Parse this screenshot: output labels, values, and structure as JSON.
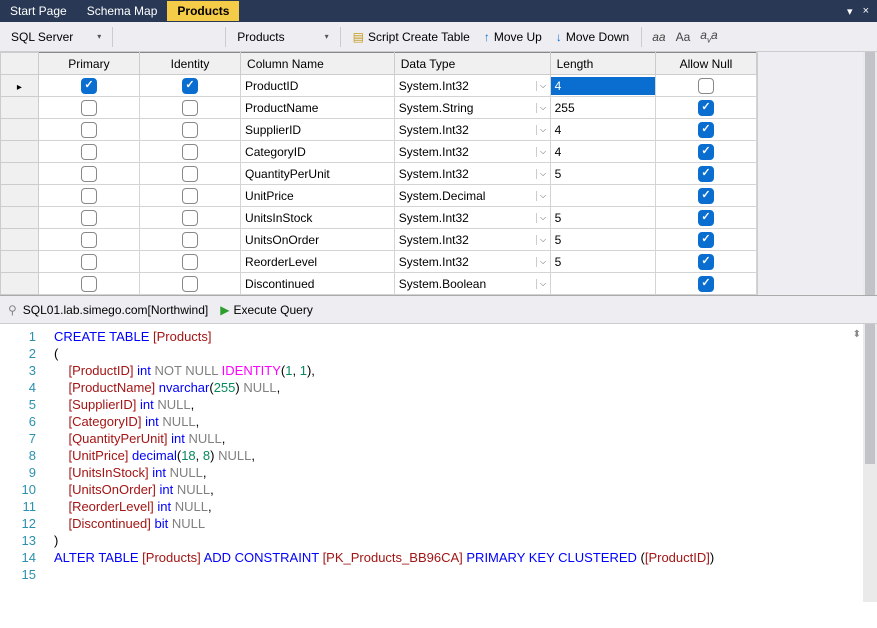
{
  "tabs": {
    "items": [
      "Start Page",
      "Schema Map",
      "Products"
    ],
    "activeIndex": 2
  },
  "toolbar": {
    "provider": "SQL Server",
    "table": "Products",
    "scriptCreate": "Script Create Table",
    "moveUp": "Move Up",
    "moveDown": "Move Down"
  },
  "grid": {
    "headers": {
      "primary": "Primary",
      "identity": "Identity",
      "columnName": "Column Name",
      "dataType": "Data Type",
      "length": "Length",
      "allowNull": "Allow Null"
    },
    "rows": [
      {
        "primary": true,
        "identity": true,
        "name": "ProductID",
        "type": "System.Int32",
        "length": "4",
        "lenSelected": true,
        "allowNull": false,
        "current": true
      },
      {
        "primary": false,
        "identity": false,
        "name": "ProductName",
        "type": "System.String",
        "length": "255",
        "lenSelected": false,
        "allowNull": true,
        "current": false
      },
      {
        "primary": false,
        "identity": false,
        "name": "SupplierID",
        "type": "System.Int32",
        "length": "4",
        "lenSelected": false,
        "allowNull": true,
        "current": false
      },
      {
        "primary": false,
        "identity": false,
        "name": "CategoryID",
        "type": "System.Int32",
        "length": "4",
        "lenSelected": false,
        "allowNull": true,
        "current": false
      },
      {
        "primary": false,
        "identity": false,
        "name": "QuantityPerUnit",
        "type": "System.Int32",
        "length": "5",
        "lenSelected": false,
        "allowNull": true,
        "current": false
      },
      {
        "primary": false,
        "identity": false,
        "name": "UnitPrice",
        "type": "System.Decimal",
        "length": "",
        "lenSelected": false,
        "allowNull": true,
        "current": false
      },
      {
        "primary": false,
        "identity": false,
        "name": "UnitsInStock",
        "type": "System.Int32",
        "length": "5",
        "lenSelected": false,
        "allowNull": true,
        "current": false
      },
      {
        "primary": false,
        "identity": false,
        "name": "UnitsOnOrder",
        "type": "System.Int32",
        "length": "5",
        "lenSelected": false,
        "allowNull": true,
        "current": false
      },
      {
        "primary": false,
        "identity": false,
        "name": "ReorderLevel",
        "type": "System.Int32",
        "length": "5",
        "lenSelected": false,
        "allowNull": true,
        "current": false
      },
      {
        "primary": false,
        "identity": false,
        "name": "Discontinued",
        "type": "System.Boolean",
        "length": "",
        "lenSelected": false,
        "allowNull": true,
        "current": false
      }
    ]
  },
  "status": {
    "connection": "SQL01.lab.simego.com[Northwind]",
    "execute": "Execute Query"
  },
  "sql": {
    "lines": [
      [
        [
          "kw-blue",
          "CREATE TABLE"
        ],
        [
          "sp",
          " "
        ],
        [
          "kw-red",
          "[Products]"
        ]
      ],
      [
        [
          "plain",
          "("
        ]
      ],
      [
        [
          "indent",
          "    "
        ],
        [
          "kw-red",
          "[ProductID]"
        ],
        [
          "sp",
          " "
        ],
        [
          "kw-blue",
          "int"
        ],
        [
          "sp",
          " "
        ],
        [
          "kw-gray",
          "NOT NULL"
        ],
        [
          "sp",
          " "
        ],
        [
          "kw-pink",
          "IDENTITY"
        ],
        [
          "plain",
          "("
        ],
        [
          "kw-lit",
          "1"
        ],
        [
          "plain",
          ", "
        ],
        [
          "kw-lit",
          "1"
        ],
        [
          "plain",
          "),"
        ]
      ],
      [
        [
          "indent",
          "    "
        ],
        [
          "kw-red",
          "[ProductName]"
        ],
        [
          "sp",
          " "
        ],
        [
          "kw-blue",
          "nvarchar"
        ],
        [
          "plain",
          "("
        ],
        [
          "kw-lit",
          "255"
        ],
        [
          "plain",
          ") "
        ],
        [
          "kw-gray",
          "NULL"
        ],
        [
          "plain",
          ","
        ]
      ],
      [
        [
          "indent",
          "    "
        ],
        [
          "kw-red",
          "[SupplierID]"
        ],
        [
          "sp",
          " "
        ],
        [
          "kw-blue",
          "int"
        ],
        [
          "sp",
          " "
        ],
        [
          "kw-gray",
          "NULL"
        ],
        [
          "plain",
          ","
        ]
      ],
      [
        [
          "indent",
          "    "
        ],
        [
          "kw-red",
          "[CategoryID]"
        ],
        [
          "sp",
          " "
        ],
        [
          "kw-blue",
          "int"
        ],
        [
          "sp",
          " "
        ],
        [
          "kw-gray",
          "NULL"
        ],
        [
          "plain",
          ","
        ]
      ],
      [
        [
          "indent",
          "    "
        ],
        [
          "kw-red",
          "[QuantityPerUnit]"
        ],
        [
          "sp",
          " "
        ],
        [
          "kw-blue",
          "int"
        ],
        [
          "sp",
          " "
        ],
        [
          "kw-gray",
          "NULL"
        ],
        [
          "plain",
          ","
        ]
      ],
      [
        [
          "indent",
          "    "
        ],
        [
          "kw-red",
          "[UnitPrice]"
        ],
        [
          "sp",
          " "
        ],
        [
          "kw-blue",
          "decimal"
        ],
        [
          "plain",
          "("
        ],
        [
          "kw-lit",
          "18"
        ],
        [
          "plain",
          ", "
        ],
        [
          "kw-lit",
          "8"
        ],
        [
          "plain",
          ") "
        ],
        [
          "kw-gray",
          "NULL"
        ],
        [
          "plain",
          ","
        ]
      ],
      [
        [
          "indent",
          "    "
        ],
        [
          "kw-red",
          "[UnitsInStock]"
        ],
        [
          "sp",
          " "
        ],
        [
          "kw-blue",
          "int"
        ],
        [
          "sp",
          " "
        ],
        [
          "kw-gray",
          "NULL"
        ],
        [
          "plain",
          ","
        ]
      ],
      [
        [
          "indent",
          "    "
        ],
        [
          "kw-red",
          "[UnitsOnOrder]"
        ],
        [
          "sp",
          " "
        ],
        [
          "kw-blue",
          "int"
        ],
        [
          "sp",
          " "
        ],
        [
          "kw-gray",
          "NULL"
        ],
        [
          "plain",
          ","
        ]
      ],
      [
        [
          "indent",
          "    "
        ],
        [
          "kw-red",
          "[ReorderLevel]"
        ],
        [
          "sp",
          " "
        ],
        [
          "kw-blue",
          "int"
        ],
        [
          "sp",
          " "
        ],
        [
          "kw-gray",
          "NULL"
        ],
        [
          "plain",
          ","
        ]
      ],
      [
        [
          "indent",
          "    "
        ],
        [
          "kw-red",
          "[Discontinued]"
        ],
        [
          "sp",
          " "
        ],
        [
          "kw-blue",
          "bit"
        ],
        [
          "sp",
          " "
        ],
        [
          "kw-gray",
          "NULL"
        ]
      ],
      [
        [
          "plain",
          ")"
        ]
      ],
      [
        [
          "kw-blue",
          "ALTER TABLE"
        ],
        [
          "sp",
          " "
        ],
        [
          "kw-red",
          "[Products]"
        ],
        [
          "sp",
          " "
        ],
        [
          "kw-blue",
          "ADD CONSTRAINT"
        ],
        [
          "sp",
          " "
        ],
        [
          "kw-red",
          "[PK_Products_BB96CA]"
        ],
        [
          "sp",
          " "
        ],
        [
          "kw-blue",
          "PRIMARY KEY CLUSTERED"
        ],
        [
          "sp",
          " ("
        ],
        [
          "kw-red",
          "[ProductID]"
        ],
        [
          "plain",
          ")"
        ]
      ],
      [
        [
          "plain",
          ""
        ]
      ]
    ]
  }
}
